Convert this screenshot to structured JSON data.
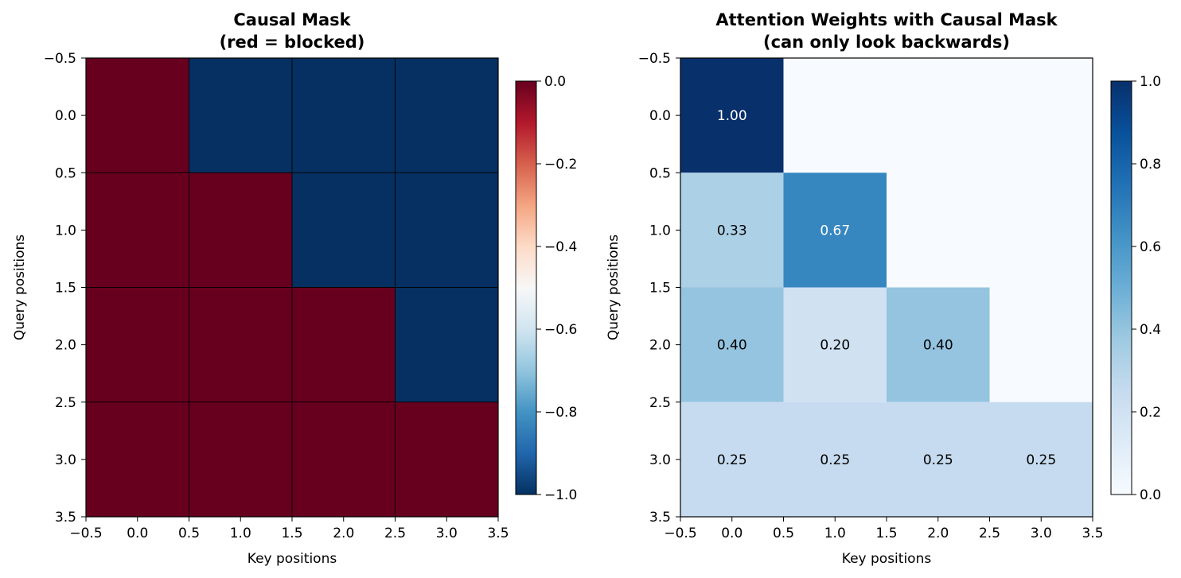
{
  "chart_data": [
    {
      "type": "heatmap",
      "title": [
        "Causal Mask",
        "(red = blocked)"
      ],
      "xlabel": "Key positions",
      "ylabel": "Query positions",
      "xlim": [
        -0.5,
        3.5
      ],
      "ylim": [
        3.5,
        -0.5
      ],
      "xticks": [
        "−0.5",
        "0.0",
        "0.5",
        "1.0",
        "1.5",
        "2.0",
        "2.5",
        "3.0",
        "3.5"
      ],
      "yticks": [
        "−0.5",
        "0.0",
        "0.5",
        "1.0",
        "1.5",
        "2.0",
        "2.5",
        "3.0",
        "3.5"
      ],
      "matrix": [
        [
          0,
          -1,
          -1,
          -1
        ],
        [
          0,
          0,
          -1,
          -1
        ],
        [
          0,
          0,
          0,
          -1
        ],
        [
          0,
          0,
          0,
          0
        ]
      ],
      "colormap": "RdBu_r",
      "vmin": -1,
      "vmax": 0,
      "colorbar_ticks": [
        "0.0",
        "−0.2",
        "−0.4",
        "−0.6",
        "−0.8",
        "−1.0"
      ],
      "colorbar_values": [
        0,
        -0.2,
        -0.4,
        -0.6,
        -0.8,
        -1.0
      ],
      "grid": true
    },
    {
      "type": "heatmap",
      "title": [
        "Attention Weights with Causal Mask",
        "(can only look backwards)"
      ],
      "xlabel": "Key positions",
      "ylabel": "Query positions",
      "xlim": [
        -0.5,
        3.5
      ],
      "ylim": [
        3.5,
        -0.5
      ],
      "xticks": [
        "−0.5",
        "0.0",
        "0.5",
        "1.0",
        "1.5",
        "2.0",
        "2.5",
        "3.0",
        "3.5"
      ],
      "yticks": [
        "−0.5",
        "0.0",
        "0.5",
        "1.0",
        "1.5",
        "2.0",
        "2.5",
        "3.0",
        "3.5"
      ],
      "matrix": [
        [
          1.0,
          0,
          0,
          0
        ],
        [
          0.33,
          0.67,
          0,
          0
        ],
        [
          0.4,
          0.2,
          0.4,
          0
        ],
        [
          0.25,
          0.25,
          0.25,
          0.25
        ]
      ],
      "cell_labels": [
        [
          "1.00",
          "",
          "",
          ""
        ],
        [
          "0.33",
          "0.67",
          "",
          ""
        ],
        [
          "0.40",
          "0.20",
          "0.40",
          ""
        ],
        [
          "0.25",
          "0.25",
          "0.25",
          "0.25"
        ]
      ],
      "colormap": "Blues",
      "vmin": 0,
      "vmax": 1,
      "colorbar_ticks": [
        "1.0",
        "0.8",
        "0.6",
        "0.4",
        "0.2",
        "0.0"
      ],
      "colorbar_values": [
        1.0,
        0.8,
        0.6,
        0.4,
        0.2,
        0.0
      ],
      "grid": false
    }
  ]
}
